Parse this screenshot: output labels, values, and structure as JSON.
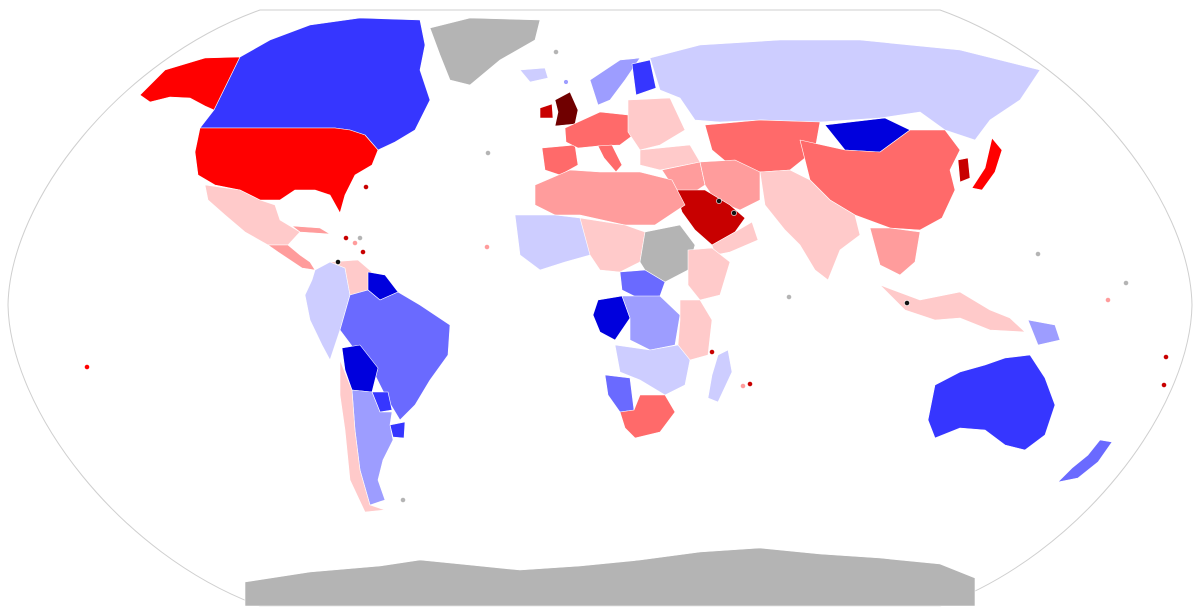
{
  "map": {
    "projection": "Robinson",
    "legend": "none",
    "text_labels": "none",
    "colors": {
      "background": "#ffffff",
      "frame_outline": "#cfcfcf",
      "no_data": "#b4b4b4",
      "blue_darkest": "#0000dd",
      "blue_dark": "#3636ff",
      "blue_mid": "#6a6aff",
      "blue_light": "#9d9dff",
      "blue_lightest": "#cdcdff",
      "red_lightest": "#ffcaca",
      "red_light": "#ff9c9c",
      "red_mid": "#ff6a6a",
      "red_strong": "#ff0000",
      "red_dark": "#c80000",
      "red_darkest": "#700000",
      "micro_black": "#111111"
    },
    "regions": [
      {
        "name": "alaska",
        "color_key": "red_strong"
      },
      {
        "name": "canada",
        "color_key": "blue_dark"
      },
      {
        "name": "greenland",
        "color_key": "no_data"
      },
      {
        "name": "iceland",
        "color_key": "blue_lightest"
      },
      {
        "name": "usa",
        "color_key": "red_strong"
      },
      {
        "name": "mexico",
        "color_key": "red_lightest"
      },
      {
        "name": "central-america",
        "color_key": "red_light"
      },
      {
        "name": "cuba",
        "color_key": "red_light"
      },
      {
        "name": "venezuela",
        "color_key": "red_lightest"
      },
      {
        "name": "guyana-suriname",
        "color_key": "blue_darkest"
      },
      {
        "name": "colombia-ecuador-peru",
        "color_key": "blue_lightest"
      },
      {
        "name": "brazil",
        "color_key": "blue_mid"
      },
      {
        "name": "bolivia",
        "color_key": "blue_darkest"
      },
      {
        "name": "paraguay",
        "color_key": "blue_dark"
      },
      {
        "name": "argentina",
        "color_key": "blue_light"
      },
      {
        "name": "uruguay",
        "color_key": "blue_dark"
      },
      {
        "name": "chile",
        "color_key": "red_lightest"
      },
      {
        "name": "uk",
        "color_key": "red_darkest"
      },
      {
        "name": "ireland",
        "color_key": "red_dark"
      },
      {
        "name": "scandinavia",
        "color_key": "blue_light"
      },
      {
        "name": "finland",
        "color_key": "blue_dark"
      },
      {
        "name": "iberia",
        "color_key": "red_mid"
      },
      {
        "name": "western-europe",
        "color_key": "red_mid"
      },
      {
        "name": "italy",
        "color_key": "red_mid"
      },
      {
        "name": "eastern-europe",
        "color_key": "red_lightest"
      },
      {
        "name": "russia",
        "color_key": "blue_lightest"
      },
      {
        "name": "turkey",
        "color_key": "red_lightest"
      },
      {
        "name": "central-asia",
        "color_key": "red_mid"
      },
      {
        "name": "mongolia",
        "color_key": "blue_darkest"
      },
      {
        "name": "china",
        "color_key": "red_mid"
      },
      {
        "name": "japan",
        "color_key": "red_strong"
      },
      {
        "name": "korea",
        "color_key": "red_dark"
      },
      {
        "name": "middle-east",
        "color_key": "red_light"
      },
      {
        "name": "iran",
        "color_key": "red_light"
      },
      {
        "name": "saudi-arabia",
        "color_key": "red_dark"
      },
      {
        "name": "yemen-oman",
        "color_key": "red_lightest"
      },
      {
        "name": "south-asia",
        "color_key": "red_lightest"
      },
      {
        "name": "southeast-asia",
        "color_key": "red_light"
      },
      {
        "name": "maritime-southeast-asia",
        "color_key": "red_lightest"
      },
      {
        "name": "new-guinea",
        "color_key": "blue_light"
      },
      {
        "name": "north-africa",
        "color_key": "red_light"
      },
      {
        "name": "west-africa",
        "color_key": "blue_lightest"
      },
      {
        "name": "west-central-africa",
        "color_key": "red_lightest"
      },
      {
        "name": "sudan",
        "color_key": "no_data"
      },
      {
        "name": "horn-of-africa",
        "color_key": "red_lightest"
      },
      {
        "name": "central-africa",
        "color_key": "blue_mid"
      },
      {
        "name": "congo-gabon",
        "color_key": "blue_darkest"
      },
      {
        "name": "drc",
        "color_key": "blue_light"
      },
      {
        "name": "east-africa",
        "color_key": "red_lightest"
      },
      {
        "name": "southern-africa",
        "color_key": "blue_lightest"
      },
      {
        "name": "namibia",
        "color_key": "blue_mid"
      },
      {
        "name": "south-africa",
        "color_key": "red_mid"
      },
      {
        "name": "madagascar",
        "color_key": "blue_lightest"
      },
      {
        "name": "australia",
        "color_key": "blue_dark"
      },
      {
        "name": "new-zealand",
        "color_key": "blue_mid"
      },
      {
        "name": "antarctica",
        "color_key": "no_data"
      }
    ],
    "small_territories": [
      {
        "name": "svalbard",
        "color_key": "no_data"
      },
      {
        "name": "faroe",
        "color_key": "blue_light"
      },
      {
        "name": "caribbean-1",
        "color_key": "red_dark"
      },
      {
        "name": "caribbean-2",
        "color_key": "red_light"
      },
      {
        "name": "caribbean-3",
        "color_key": "micro_black"
      },
      {
        "name": "caribbean-4",
        "color_key": "red_dark"
      },
      {
        "name": "caribbean-5",
        "color_key": "no_data"
      },
      {
        "name": "bermuda",
        "color_key": "red_dark"
      },
      {
        "name": "azores",
        "color_key": "no_data"
      },
      {
        "name": "cape-verde",
        "color_key": "red_light"
      },
      {
        "name": "gulf-bahrain",
        "color_key": "micro_black"
      },
      {
        "name": "gulf-qatar",
        "color_key": "micro_black"
      },
      {
        "name": "singapore",
        "color_key": "micro_black"
      },
      {
        "name": "seychelles",
        "color_key": "red_dark"
      },
      {
        "name": "mauritius",
        "color_key": "red_light"
      },
      {
        "name": "maldives",
        "color_key": "no_data"
      },
      {
        "name": "comoros",
        "color_key": "red_dark"
      },
      {
        "name": "pacific-1",
        "color_key": "no_data"
      },
      {
        "name": "pacific-2",
        "color_key": "red_light"
      },
      {
        "name": "pacific-3",
        "color_key": "no_data"
      },
      {
        "name": "pacific-4",
        "color_key": "red_dark"
      },
      {
        "name": "hawaii",
        "color_key": "red_strong"
      },
      {
        "name": "polynesia",
        "color_key": "red_dark"
      },
      {
        "name": "atlantic-south",
        "color_key": "no_data"
      }
    ]
  }
}
